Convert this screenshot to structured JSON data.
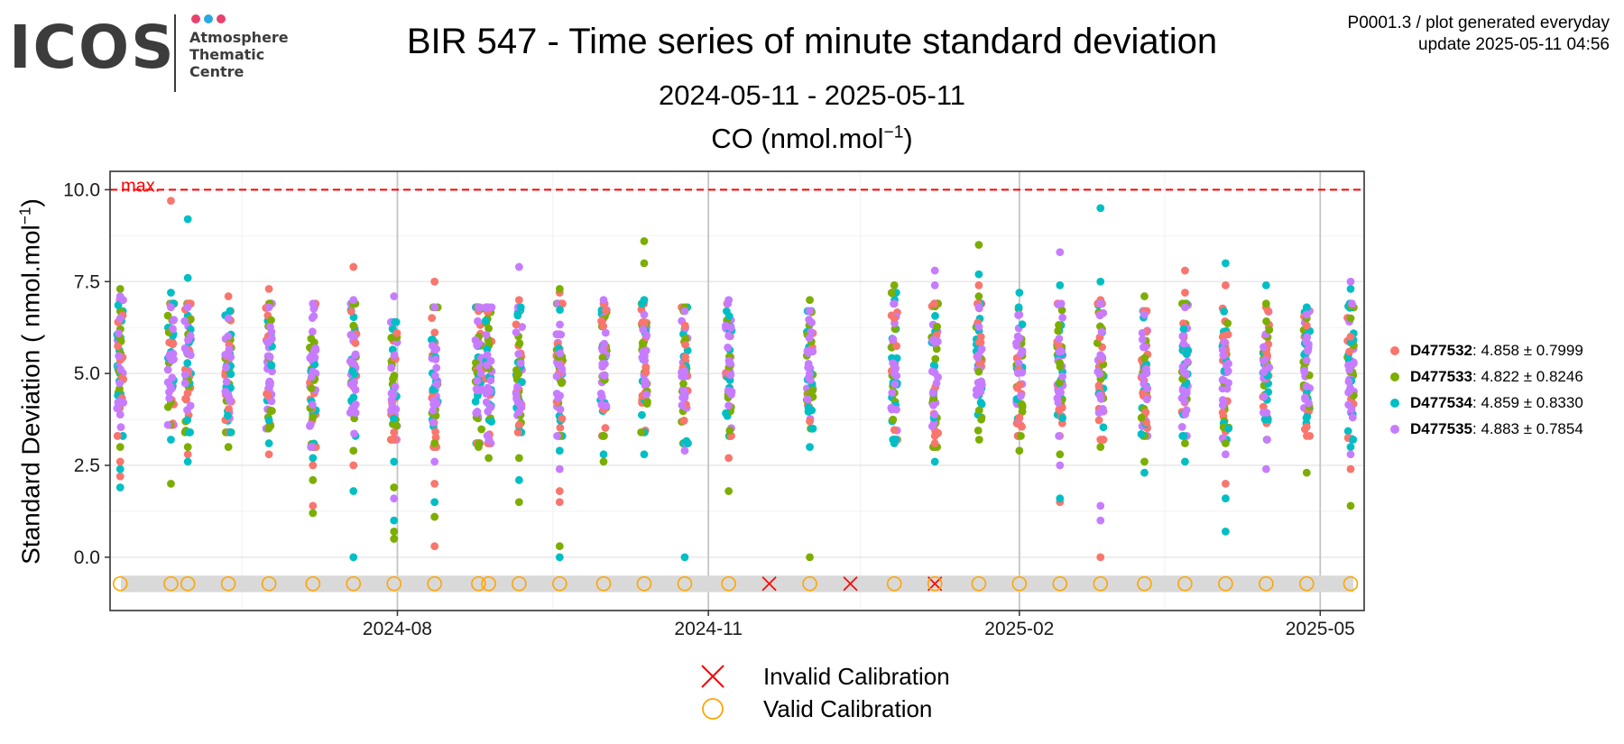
{
  "header": {
    "logo_text": "ICOS",
    "logo_sub": [
      "Atmosphere",
      "Thematic",
      "Centre"
    ],
    "logo_dots": [
      "#e8416f",
      "#2ba8e0",
      "#e8416f"
    ],
    "info_line1": "P0001.3 / plot generated everyday",
    "info_line2": "update  2025-05-11 04:56"
  },
  "chart_data": {
    "type": "scatter",
    "title": "BIR 547 - Time series of minute standard deviation",
    "subtitle": "2024-05-11 - 2025-05-11",
    "gas_prefix": "CO (nmol.mol",
    "gas_exp": "−1",
    "gas_suffix": ")",
    "ylabel_prefix": "Standard Deviation ( nmol.mol",
    "ylabel_exp": "−1",
    "ylabel_suffix": ")",
    "xlim": [
      "2024-05-08",
      "2025-05-14"
    ],
    "ylim": [
      -1.45,
      10.5
    ],
    "x_ticks": [
      {
        "date": "2024-08-01",
        "label": "2024-08"
      },
      {
        "date": "2024-11-01",
        "label": "2024-11"
      },
      {
        "date": "2025-02-01",
        "label": "2025-02"
      },
      {
        "date": "2025-05-01",
        "label": "2025-05"
      }
    ],
    "x_minor": [
      "2024-06-16",
      "2024-09-16",
      "2024-12-16",
      "2025-03-16"
    ],
    "y_ticks": [
      {
        "value": 0,
        "label": "0.0"
      },
      {
        "value": 2.5,
        "label": "2.5"
      },
      {
        "value": 5,
        "label": "5.0"
      },
      {
        "value": 7.5,
        "label": "7.5"
      },
      {
        "value": 10,
        "label": "10.0"
      }
    ],
    "max_line": {
      "value": 10,
      "label": "max.",
      "color": "#ff0000"
    },
    "calibration_band": [
      -0.95,
      -0.5
    ],
    "calibration_level": -0.72,
    "series": [
      {
        "name": "D477532",
        "stat": ": 4.858 ± 0.7999",
        "color": "#f8766d"
      },
      {
        "name": "D477533",
        "stat": ": 4.822 ± 0.8246",
        "color": "#7cae00"
      },
      {
        "name": "D477534",
        "stat": ": 4.859 ± 0.8330",
        "color": "#00bfc4"
      },
      {
        "name": "D477535",
        "stat": ": 4.883 ± 0.7854",
        "color": "#c77cff"
      }
    ],
    "points": {
      "D477532": [
        [
          "2024-05-11",
          2.6
        ],
        [
          "2024-05-11",
          2.2
        ],
        [
          "2024-05-26",
          9.7
        ],
        [
          "2024-05-31",
          2.8
        ],
        [
          "2024-06-12",
          7.1
        ],
        [
          "2024-06-24",
          7.3
        ],
        [
          "2024-06-24",
          2.8
        ],
        [
          "2024-07-07",
          1.4
        ],
        [
          "2024-07-07",
          2.5
        ],
        [
          "2024-07-19",
          7.9
        ],
        [
          "2024-07-19",
          2.5
        ],
        [
          "2024-07-31",
          3.4
        ],
        [
          "2024-08-12",
          7.5
        ],
        [
          "2024-08-12",
          2.0
        ],
        [
          "2024-08-12",
          0.3
        ],
        [
          "2024-08-25",
          6.7
        ],
        [
          "2024-09-06",
          7.0
        ],
        [
          "2024-09-06",
          3.6
        ],
        [
          "2024-09-18",
          7.2
        ],
        [
          "2024-09-18",
          1.8
        ],
        [
          "2024-09-18",
          1.5
        ],
        [
          "2024-10-01",
          6.9
        ],
        [
          "2024-10-13",
          6.4
        ],
        [
          "2024-11-07",
          2.7
        ],
        [
          "2024-12-01",
          3.7
        ],
        [
          "2024-12-26",
          6.5
        ],
        [
          "2025-01-07",
          3.3
        ],
        [
          "2025-01-07",
          3.1
        ],
        [
          "2025-01-20",
          7.4
        ],
        [
          "2025-02-01",
          3.8
        ],
        [
          "2025-02-13",
          1.5
        ],
        [
          "2025-02-25",
          7.0
        ],
        [
          "2025-02-25",
          3.2
        ],
        [
          "2025-02-25",
          0.0
        ],
        [
          "2025-03-10",
          6.7
        ],
        [
          "2025-03-22",
          7.8
        ],
        [
          "2025-03-22",
          7.2
        ],
        [
          "2025-04-03",
          7.4
        ],
        [
          "2025-04-03",
          2.0
        ],
        [
          "2025-04-15",
          6.8
        ],
        [
          "2025-04-27",
          6.3
        ],
        [
          "2025-05-10",
          2.4
        ],
        [
          "2025-05-10",
          6.0
        ]
      ],
      "D477533": [
        [
          "2024-05-11",
          7.3
        ],
        [
          "2024-05-11",
          3.0
        ],
        [
          "2024-05-26",
          2.0
        ],
        [
          "2024-05-31",
          3.0
        ],
        [
          "2024-06-12",
          3.0
        ],
        [
          "2024-07-07",
          1.2
        ],
        [
          "2024-07-07",
          2.1
        ],
        [
          "2024-07-19",
          6.3
        ],
        [
          "2024-07-19",
          2.9
        ],
        [
          "2024-07-31",
          1.9
        ],
        [
          "2024-07-31",
          0.7
        ],
        [
          "2024-07-31",
          0.5
        ],
        [
          "2024-08-12",
          1.1
        ],
        [
          "2024-08-12",
          3.1
        ],
        [
          "2024-08-25",
          3.0
        ],
        [
          "2024-08-28",
          2.7
        ],
        [
          "2024-09-06",
          1.5
        ],
        [
          "2024-09-06",
          2.7
        ],
        [
          "2024-09-18",
          7.3
        ],
        [
          "2024-09-18",
          0.3
        ],
        [
          "2024-10-01",
          2.6
        ],
        [
          "2024-10-13",
          8.6
        ],
        [
          "2024-10-13",
          8.0
        ],
        [
          "2024-10-25",
          6.8
        ],
        [
          "2024-11-07",
          1.8
        ],
        [
          "2024-12-01",
          7.0
        ],
        [
          "2024-12-01",
          0.0
        ],
        [
          "2024-12-26",
          7.4
        ],
        [
          "2025-01-20",
          8.5
        ],
        [
          "2025-01-20",
          7.1
        ],
        [
          "2025-02-01",
          2.9
        ],
        [
          "2025-02-13",
          2.8
        ],
        [
          "2025-02-25",
          3.0
        ],
        [
          "2025-03-10",
          7.1
        ],
        [
          "2025-03-10",
          2.6
        ],
        [
          "2025-03-22",
          3.1
        ],
        [
          "2025-04-03",
          3.1
        ],
        [
          "2025-04-15",
          6.9
        ],
        [
          "2025-04-27",
          2.3
        ],
        [
          "2025-04-27",
          6.5
        ],
        [
          "2025-05-10",
          1.4
        ],
        [
          "2025-05-10",
          6.5
        ]
      ],
      "D477534": [
        [
          "2024-05-11",
          1.9
        ],
        [
          "2024-05-11",
          2.4
        ],
        [
          "2024-05-26",
          7.2
        ],
        [
          "2024-05-26",
          3.2
        ],
        [
          "2024-05-31",
          9.2
        ],
        [
          "2024-05-31",
          7.6
        ],
        [
          "2024-05-31",
          2.6
        ],
        [
          "2024-06-24",
          3.1
        ],
        [
          "2024-07-07",
          2.7
        ],
        [
          "2024-07-19",
          1.8
        ],
        [
          "2024-07-19",
          0.0
        ],
        [
          "2024-07-31",
          2.6
        ],
        [
          "2024-07-31",
          1.0
        ],
        [
          "2024-08-12",
          1.5
        ],
        [
          "2024-09-06",
          2.1
        ],
        [
          "2024-09-18",
          2.9
        ],
        [
          "2024-09-18",
          0.0
        ],
        [
          "2024-10-01",
          2.8
        ],
        [
          "2024-10-13",
          2.8
        ],
        [
          "2024-10-13",
          7.0
        ],
        [
          "2024-10-25",
          0.0
        ],
        [
          "2024-12-01",
          3.0
        ],
        [
          "2024-12-26",
          3.1
        ],
        [
          "2025-01-07",
          2.6
        ],
        [
          "2025-01-20",
          7.7
        ],
        [
          "2025-02-01",
          7.2
        ],
        [
          "2025-02-13",
          7.4
        ],
        [
          "2025-02-13",
          1.6
        ],
        [
          "2025-02-25",
          9.5
        ],
        [
          "2025-02-25",
          7.5
        ],
        [
          "2025-03-10",
          2.3
        ],
        [
          "2025-03-22",
          2.6
        ],
        [
          "2025-04-03",
          8.0
        ],
        [
          "2025-04-03",
          0.7
        ],
        [
          "2025-04-03",
          1.6
        ],
        [
          "2025-04-15",
          7.4
        ],
        [
          "2025-04-27",
          6.8
        ],
        [
          "2025-05-10",
          7.3
        ],
        [
          "2025-05-10",
          3.0
        ]
      ],
      "D477535": [
        [
          "2024-05-11",
          7.1
        ],
        [
          "2024-05-11",
          6.5
        ],
        [
          "2024-05-26",
          6.8
        ],
        [
          "2024-05-31",
          6.8
        ],
        [
          "2024-06-12",
          6.5
        ],
        [
          "2024-06-24",
          6.8
        ],
        [
          "2024-07-07",
          6.9
        ],
        [
          "2024-07-19",
          7.0
        ],
        [
          "2024-07-31",
          7.1
        ],
        [
          "2024-07-31",
          1.6
        ],
        [
          "2024-08-12",
          6.8
        ],
        [
          "2024-08-12",
          2.6
        ],
        [
          "2024-08-25",
          6.8
        ],
        [
          "2024-08-28",
          6.8
        ],
        [
          "2024-09-06",
          7.9
        ],
        [
          "2024-09-18",
          2.4
        ],
        [
          "2024-10-01",
          7.0
        ],
        [
          "2024-10-13",
          6.6
        ],
        [
          "2024-10-25",
          6.7
        ],
        [
          "2024-10-25",
          2.9
        ],
        [
          "2024-11-07",
          7.0
        ],
        [
          "2024-12-01",
          6.7
        ],
        [
          "2024-12-26",
          6.9
        ],
        [
          "2025-01-07",
          7.8
        ],
        [
          "2025-01-07",
          7.4
        ],
        [
          "2025-01-20",
          6.8
        ],
        [
          "2025-02-01",
          6.6
        ],
        [
          "2025-02-13",
          8.3
        ],
        [
          "2025-02-13",
          2.5
        ],
        [
          "2025-02-25",
          6.9
        ],
        [
          "2025-02-25",
          1.4
        ],
        [
          "2025-02-25",
          1.0
        ],
        [
          "2025-03-10",
          6.6
        ],
        [
          "2025-03-22",
          6.8
        ],
        [
          "2025-04-03",
          2.8
        ],
        [
          "2025-04-15",
          2.4
        ],
        [
          "2025-04-27",
          6.6
        ],
        [
          "2025-05-10",
          7.5
        ],
        [
          "2025-05-10",
          2.8
        ]
      ]
    },
    "clusters": [
      {
        "date": "2024-05-11",
        "low": 3.3,
        "high": 7.0
      },
      {
        "date": "2024-05-26",
        "low": 3.6,
        "high": 6.9
      },
      {
        "date": "2024-05-31",
        "low": 3.4,
        "high": 6.9
      },
      {
        "date": "2024-06-12",
        "low": 3.4,
        "high": 6.7
      },
      {
        "date": "2024-06-24",
        "low": 3.5,
        "high": 6.9
      },
      {
        "date": "2024-07-07",
        "low": 3.0,
        "high": 6.9
      },
      {
        "date": "2024-07-19",
        "low": 3.3,
        "high": 6.9
      },
      {
        "date": "2024-07-31",
        "low": 3.2,
        "high": 6.4
      },
      {
        "date": "2024-08-12",
        "low": 3.0,
        "high": 6.8
      },
      {
        "date": "2024-08-25",
        "low": 3.1,
        "high": 6.8
      },
      {
        "date": "2024-08-28",
        "low": 3.1,
        "high": 6.8
      },
      {
        "date": "2024-09-06",
        "low": 3.4,
        "high": 6.8
      },
      {
        "date": "2024-09-18",
        "low": 3.3,
        "high": 6.9
      },
      {
        "date": "2024-10-01",
        "low": 3.3,
        "high": 6.9
      },
      {
        "date": "2024-10-13",
        "low": 3.4,
        "high": 6.9
      },
      {
        "date": "2024-10-25",
        "low": 3.1,
        "high": 6.8
      },
      {
        "date": "2024-11-07",
        "low": 3.3,
        "high": 6.9
      },
      {
        "date": "2024-12-01",
        "low": 3.5,
        "high": 6.7
      },
      {
        "date": "2024-12-26",
        "low": 3.2,
        "high": 7.2
      },
      {
        "date": "2025-01-07",
        "low": 3.0,
        "high": 6.9
      },
      {
        "date": "2025-01-20",
        "low": 3.2,
        "high": 6.9
      },
      {
        "date": "2025-02-01",
        "low": 3.3,
        "high": 6.8
      },
      {
        "date": "2025-02-13",
        "low": 3.3,
        "high": 6.9
      },
      {
        "date": "2025-02-25",
        "low": 3.2,
        "high": 6.9
      },
      {
        "date": "2025-03-10",
        "low": 3.3,
        "high": 6.7
      },
      {
        "date": "2025-03-22",
        "low": 3.3,
        "high": 6.9
      },
      {
        "date": "2025-04-03",
        "low": 3.2,
        "high": 6.8
      },
      {
        "date": "2025-04-15",
        "low": 3.2,
        "high": 6.7
      },
      {
        "date": "2025-04-27",
        "low": 3.3,
        "high": 6.7
      },
      {
        "date": "2025-05-10",
        "low": 3.2,
        "high": 6.9
      }
    ],
    "calibrations": [
      {
        "date": "2024-05-11",
        "status": "valid"
      },
      {
        "date": "2024-05-26",
        "status": "valid"
      },
      {
        "date": "2024-05-31",
        "status": "valid"
      },
      {
        "date": "2024-06-12",
        "status": "valid"
      },
      {
        "date": "2024-06-24",
        "status": "valid"
      },
      {
        "date": "2024-07-07",
        "status": "valid"
      },
      {
        "date": "2024-07-19",
        "status": "valid"
      },
      {
        "date": "2024-07-31",
        "status": "valid"
      },
      {
        "date": "2024-08-12",
        "status": "valid"
      },
      {
        "date": "2024-08-25",
        "status": "valid"
      },
      {
        "date": "2024-08-28",
        "status": "valid"
      },
      {
        "date": "2024-09-06",
        "status": "valid"
      },
      {
        "date": "2024-09-18",
        "status": "valid"
      },
      {
        "date": "2024-10-01",
        "status": "valid"
      },
      {
        "date": "2024-10-13",
        "status": "valid"
      },
      {
        "date": "2024-10-25",
        "status": "valid"
      },
      {
        "date": "2024-11-07",
        "status": "valid"
      },
      {
        "date": "2024-11-19",
        "status": "invalid"
      },
      {
        "date": "2024-12-01",
        "status": "valid"
      },
      {
        "date": "2024-12-13",
        "status": "invalid"
      },
      {
        "date": "2024-12-26",
        "status": "valid"
      },
      {
        "date": "2025-01-07",
        "status": "invalid"
      },
      {
        "date": "2025-01-07",
        "status": "valid"
      },
      {
        "date": "2025-01-20",
        "status": "valid"
      },
      {
        "date": "2025-02-01",
        "status": "valid"
      },
      {
        "date": "2025-02-13",
        "status": "valid"
      },
      {
        "date": "2025-02-25",
        "status": "valid"
      },
      {
        "date": "2025-03-10",
        "status": "valid"
      },
      {
        "date": "2025-03-22",
        "status": "valid"
      },
      {
        "date": "2025-04-03",
        "status": "valid"
      },
      {
        "date": "2025-04-15",
        "status": "valid"
      },
      {
        "date": "2025-04-27",
        "status": "valid"
      },
      {
        "date": "2025-05-10",
        "status": "valid"
      }
    ],
    "calibration_legend": [
      {
        "status": "invalid",
        "label": "Invalid Calibration",
        "color": "#ff0000"
      },
      {
        "status": "valid",
        "label": "Valid Calibration",
        "color": "#ffa500"
      }
    ],
    "grid": true
  }
}
